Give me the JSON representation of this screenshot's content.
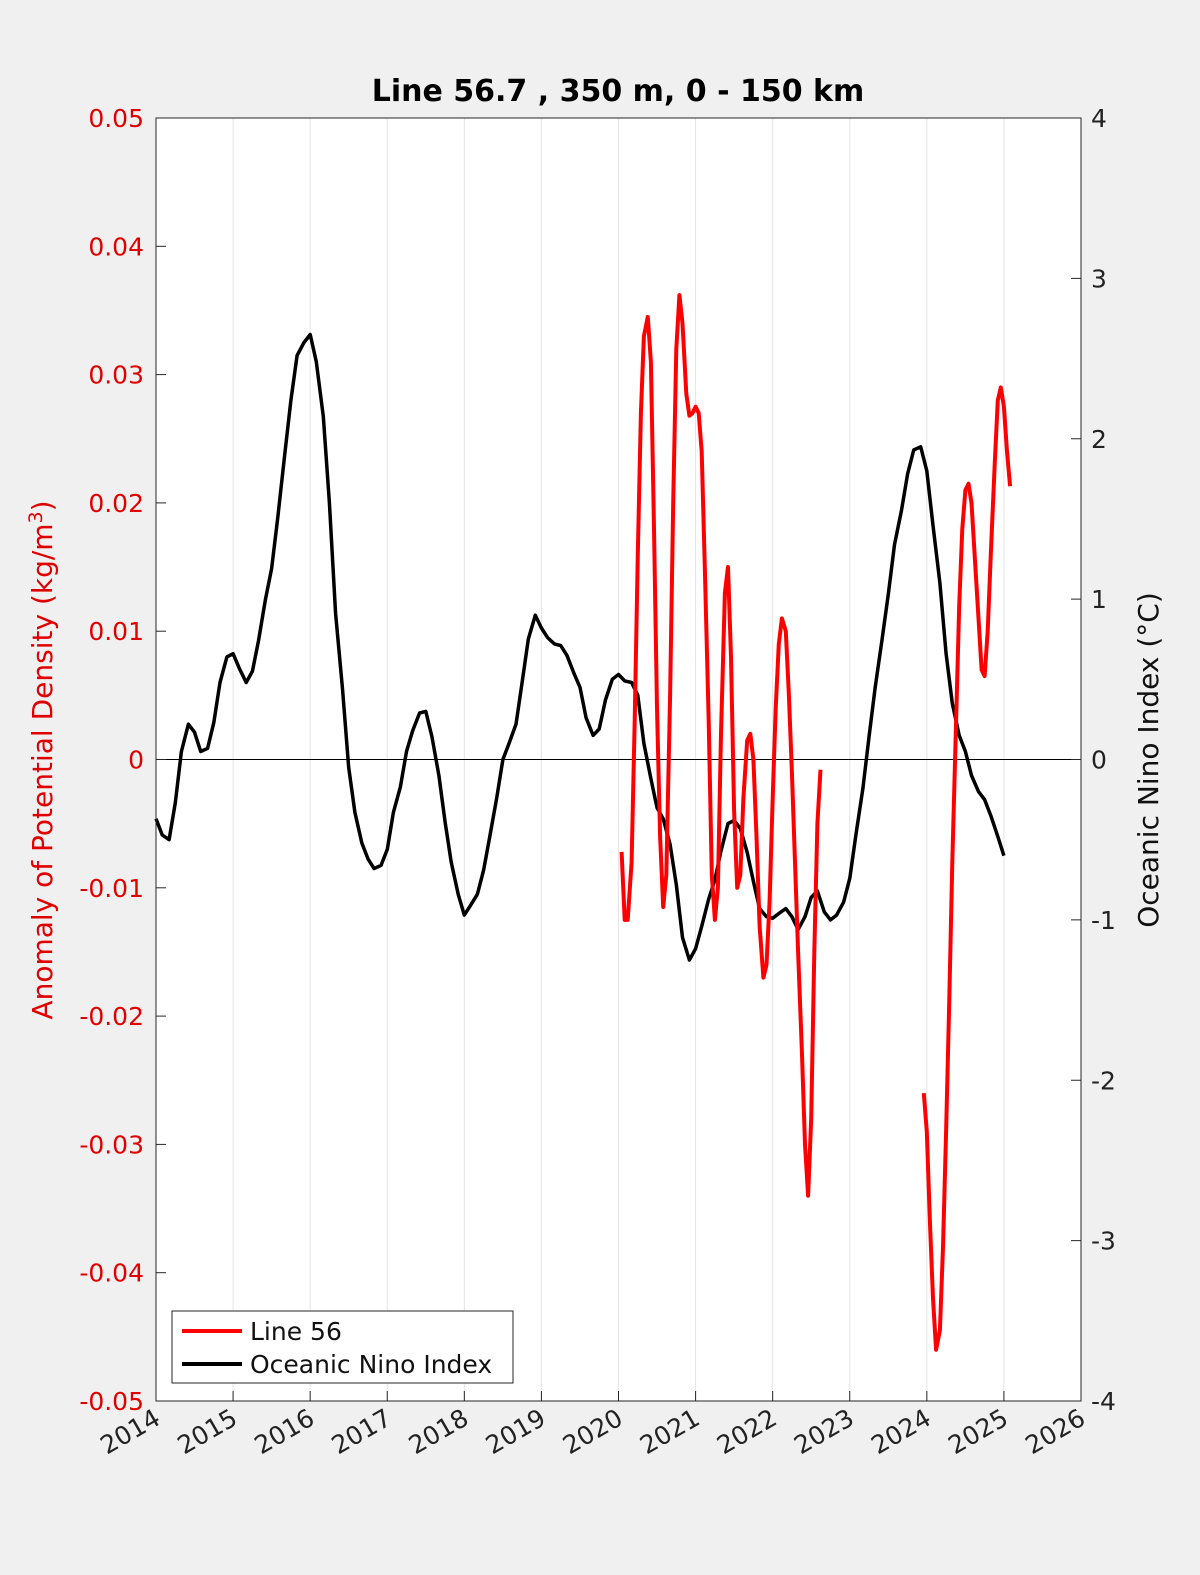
{
  "chart_data": {
    "type": "line",
    "title": "Line 56.7 , 350 m, 0 - 150 km",
    "xlim": [
      2014,
      2026
    ],
    "x_ticks": [
      "2014",
      "2015",
      "2016",
      "2017",
      "2018",
      "2019",
      "2020",
      "2021",
      "2022",
      "2023",
      "2024",
      "2025",
      "2026"
    ],
    "grid": "vertical",
    "legend_position": "bottom-left",
    "left_axis": {
      "label": "Anomaly of Potential Density (kg/m",
      "label_superscript": "3",
      "label_suffix": ")",
      "ylim": [
        -0.05,
        0.05
      ],
      "ticks": [
        "-0.05",
        "-0.04",
        "-0.03",
        "-0.02",
        "-0.01",
        "0",
        "0.01",
        "0.02",
        "0.03",
        "0.04",
        "0.05"
      ],
      "color": "#ff0000"
    },
    "right_axis": {
      "label": "Oceanic Nino Index (°C)",
      "ylim": [
        -4,
        4
      ],
      "ticks": [
        "-4",
        "-3",
        "-2",
        "-1",
        "0",
        "1",
        "2",
        "3",
        "4"
      ],
      "color": "#000000"
    },
    "series": [
      {
        "name": "Line 56",
        "axis": "left",
        "color": "#ff0000",
        "segments": [
          {
            "x": [
              2020.04,
              2020.08,
              2020.12,
              2020.17,
              2020.21,
              2020.25,
              2020.29,
              2020.33,
              2020.38,
              2020.42,
              2020.46,
              2020.5,
              2020.54,
              2020.58,
              2020.62,
              2020.67,
              2020.71,
              2020.75,
              2020.79,
              2020.83,
              2020.88,
              2020.92,
              2020.96,
              2021.0,
              2021.04,
              2021.08,
              2021.12,
              2021.17,
              2021.21,
              2021.25,
              2021.29,
              2021.33,
              2021.38,
              2021.42,
              2021.46,
              2021.5,
              2021.54,
              2021.58,
              2021.62,
              2021.67,
              2021.71,
              2021.75,
              2021.79,
              2021.83,
              2021.88,
              2021.92,
              2021.96,
              2022.0,
              2022.04,
              2022.08,
              2022.12,
              2022.17,
              2022.21,
              2022.25,
              2022.29,
              2022.33,
              2022.38,
              2022.42,
              2022.46,
              2022.5,
              2022.54,
              2022.58,
              2022.62,
              2022.67,
              2022.71,
              2022.75,
              2022.79,
              2022.83,
              2022.88,
              2022.92,
              2022.96,
              2023.0
            ],
            "y": [
              -0.0072,
              -0.0125,
              -0.0125,
              -0.008,
              0.003,
              0.016,
              0.027,
              0.033,
              0.0345,
              0.031,
              0.018,
              0.004,
              -0.006,
              -0.0115,
              -0.009,
              0.005,
              0.02,
              0.032,
              0.0362,
              0.034,
              0.0285,
              0.0268,
              0.027,
              0.0275,
              0.027,
              0.024,
              0.015,
              0.003,
              -0.009,
              -0.0125,
              -0.01,
              0.002,
              0.013,
              0.015,
              0.008,
              -0.004,
              -0.01,
              -0.009,
              -0.003,
              0.0015,
              0.002,
              0.0,
              -0.006,
              -0.013,
              -0.017,
              -0.016,
              -0.011,
              -0.003,
              0.004,
              0.009,
              0.011,
              0.01,
              0.005,
              -0.001,
              -0.008,
              -0.015,
              -0.023,
              -0.03,
              -0.034,
              -0.028,
              -0.015,
              -0.005,
              -0.0008,
              null,
              null,
              null,
              null,
              null,
              null,
              null,
              null,
              null
            ]
          },
          {
            "x": [
              2023.96,
              2024.0,
              2024.04,
              2024.08,
              2024.12,
              2024.17,
              2024.21,
              2024.25,
              2024.29,
              2024.33,
              2024.38,
              2024.42,
              2024.46,
              2024.5,
              2024.54,
              2024.58,
              2024.62,
              2024.67,
              2024.71,
              2024.75,
              2024.79,
              2024.83,
              2024.88,
              2024.92,
              2024.96,
              2025.0,
              2025.04,
              2025.08
            ],
            "y": [
              -0.026,
              -0.029,
              -0.036,
              -0.042,
              -0.046,
              -0.0445,
              -0.038,
              -0.029,
              -0.019,
              -0.008,
              0.003,
              0.012,
              0.018,
              0.021,
              0.0215,
              0.02,
              0.016,
              0.011,
              0.007,
              0.0065,
              0.01,
              0.016,
              0.023,
              0.028,
              0.029,
              0.0275,
              0.024,
              0.0213
            ]
          }
        ]
      },
      {
        "name": "Oceanic Nino Index",
        "axis": "right",
        "color": "#000000",
        "x": [
          2014.0,
          2014.08,
          2014.17,
          2014.25,
          2014.33,
          2014.42,
          2014.5,
          2014.58,
          2014.67,
          2014.75,
          2014.83,
          2014.92,
          2015.0,
          2015.08,
          2015.17,
          2015.25,
          2015.33,
          2015.42,
          2015.5,
          2015.58,
          2015.67,
          2015.75,
          2015.83,
          2015.92,
          2016.0,
          2016.08,
          2016.17,
          2016.25,
          2016.33,
          2016.42,
          2016.5,
          2016.58,
          2016.67,
          2016.75,
          2016.83,
          2016.92,
          2017.0,
          2017.08,
          2017.17,
          2017.25,
          2017.33,
          2017.42,
          2017.5,
          2017.58,
          2017.67,
          2017.75,
          2017.83,
          2017.92,
          2018.0,
          2018.08,
          2018.17,
          2018.25,
          2018.33,
          2018.42,
          2018.5,
          2018.58,
          2018.67,
          2018.75,
          2018.83,
          2018.92,
          2019.0,
          2019.08,
          2019.17,
          2019.25,
          2019.33,
          2019.42,
          2019.5,
          2019.58,
          2019.67,
          2019.75,
          2019.83,
          2019.92,
          2020.0,
          2020.08,
          2020.17,
          2020.25,
          2020.33,
          2020.42,
          2020.5,
          2020.58,
          2020.67,
          2020.75,
          2020.83,
          2020.92,
          2021.0,
          2021.08,
          2021.17,
          2021.25,
          2021.33,
          2021.42,
          2021.5,
          2021.58,
          2021.67,
          2021.75,
          2021.83,
          2021.92,
          2022.0,
          2022.08,
          2022.17,
          2022.25,
          2022.33,
          2022.42,
          2022.5,
          2022.58,
          2022.67,
          2022.75,
          2022.83,
          2022.92,
          2023.0,
          2023.08,
          2023.17,
          2023.25,
          2023.33,
          2023.42,
          2023.5,
          2023.58,
          2023.67,
          2023.75,
          2023.83,
          2023.92,
          2024.0,
          2024.08,
          2024.17,
          2024.25,
          2024.33,
          2024.42,
          2024.5,
          2024.58,
          2024.67,
          2024.75,
          2024.83,
          2024.92,
          2025.0
        ],
        "y": [
          -0.37,
          -0.47,
          -0.5,
          -0.27,
          0.05,
          0.22,
          0.17,
          0.05,
          0.07,
          0.23,
          0.48,
          0.64,
          0.66,
          0.57,
          0.48,
          0.55,
          0.74,
          1.0,
          1.19,
          1.51,
          1.9,
          2.24,
          2.52,
          2.6,
          2.65,
          2.48,
          2.14,
          1.6,
          0.91,
          0.44,
          -0.05,
          -0.33,
          -0.52,
          -0.62,
          -0.68,
          -0.66,
          -0.56,
          -0.33,
          -0.17,
          0.05,
          0.18,
          0.29,
          0.3,
          0.14,
          -0.1,
          -0.39,
          -0.64,
          -0.84,
          -0.97,
          -0.91,
          -0.84,
          -0.69,
          -0.48,
          -0.24,
          0.0,
          0.1,
          0.22,
          0.48,
          0.75,
          0.9,
          0.82,
          0.76,
          0.72,
          0.71,
          0.65,
          0.54,
          0.45,
          0.26,
          0.15,
          0.19,
          0.37,
          0.5,
          0.53,
          0.49,
          0.48,
          0.4,
          0.1,
          -0.12,
          -0.3,
          -0.37,
          -0.53,
          -0.78,
          -1.11,
          -1.25,
          -1.18,
          -1.04,
          -0.87,
          -0.75,
          -0.57,
          -0.4,
          -0.38,
          -0.43,
          -0.58,
          -0.76,
          -0.93,
          -0.98,
          -0.99,
          -0.96,
          -0.93,
          -0.98,
          -1.06,
          -0.98,
          -0.86,
          -0.82,
          -0.95,
          -1.0,
          -0.97,
          -0.89,
          -0.74,
          -0.47,
          -0.18,
          0.14,
          0.45,
          0.75,
          1.03,
          1.34,
          1.55,
          1.78,
          1.93,
          1.95,
          1.8,
          1.46,
          1.1,
          0.66,
          0.35,
          0.15,
          0.05,
          -0.1,
          -0.2,
          -0.25,
          -0.35,
          -0.48,
          -0.6
        ]
      }
    ]
  }
}
